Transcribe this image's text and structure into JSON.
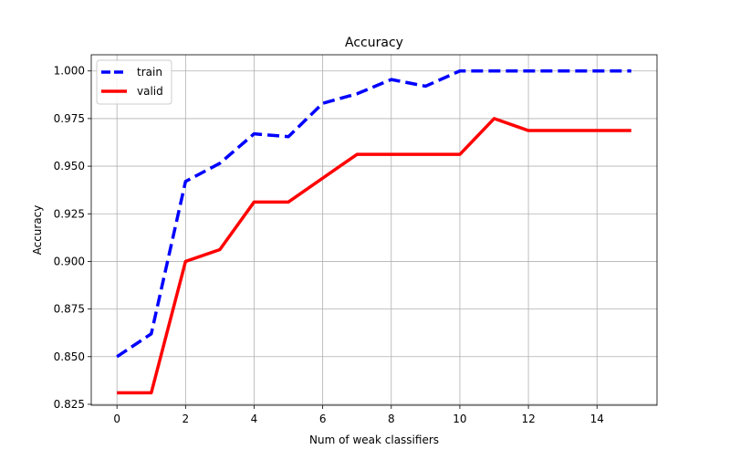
{
  "chart_data": {
    "type": "line",
    "title": "Accuracy",
    "xlabel": "Num of weak classifiers",
    "ylabel": "Accuracy",
    "xlim": [
      -0.75,
      15.75
    ],
    "ylim": [
      0.8245,
      1.0085
    ],
    "xticks": [
      0,
      2,
      4,
      6,
      8,
      10,
      12,
      14
    ],
    "yticks": [
      0.825,
      0.85,
      0.875,
      0.9,
      0.925,
      0.95,
      0.975,
      1.0
    ],
    "xtick_labels": [
      "0",
      "2",
      "4",
      "6",
      "8",
      "10",
      "12",
      "14"
    ],
    "ytick_labels": [
      "0.825",
      "0.850",
      "0.875",
      "0.900",
      "0.925",
      "0.950",
      "0.975",
      "1.000"
    ],
    "grid": true,
    "legend_position": "top-left",
    "x": [
      0,
      1,
      2,
      3,
      4,
      5,
      6,
      7,
      8,
      9,
      10,
      11,
      12,
      13,
      14,
      15
    ],
    "series": [
      {
        "name": "train",
        "color": "#0000ff",
        "style": "dashed",
        "values": [
          0.85,
          0.862,
          0.942,
          0.9515,
          0.967,
          0.9655,
          0.983,
          0.988,
          0.9955,
          0.992,
          1.0,
          1.0,
          1.0,
          1.0,
          1.0,
          1.0
        ]
      },
      {
        "name": "valid",
        "color": "#ff0000",
        "style": "solid",
        "values": [
          0.831,
          0.831,
          0.9,
          0.9062,
          0.9312,
          0.9312,
          0.9437,
          0.9562,
          0.9562,
          0.9562,
          0.9562,
          0.975,
          0.9687,
          0.9687,
          0.9687,
          0.9687
        ]
      }
    ]
  }
}
